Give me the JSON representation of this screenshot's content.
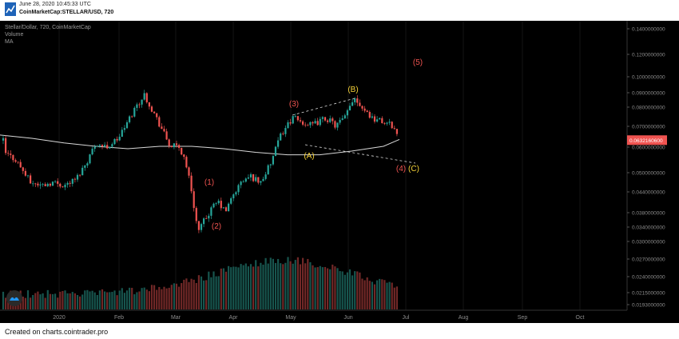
{
  "header": {
    "timestamp": "June 28, 2020 10:45:33 UTC",
    "symbol": "CoinMarketCap:STELLAR/USD, 720"
  },
  "legend": {
    "title": "Stellar/Dollar, 720, CoinMarketCap",
    "volume": "Volume",
    "ma": "MA"
  },
  "footer": {
    "text": "Created on charts.cointrader.pro"
  },
  "chart_data": {
    "type": "candlestick",
    "x_ticks": [
      "2020",
      "Feb",
      "Mar",
      "Apr",
      "May",
      "Jun",
      "Jul",
      "Aug",
      "Sep",
      "Oct"
    ],
    "price_ticks": [
      "0.1400000000",
      "0.1200000000",
      "0.1000000000",
      "0.0900000000",
      "0.0800000000",
      "0.0700000000",
      "0.0600000000",
      "0.0500000000",
      "0.0440000000",
      "0.0380000000",
      "0.0340000000",
      "0.0300000000",
      "0.0270000000",
      "0.0240000000",
      "0.0215000000",
      "0.0193000000"
    ],
    "last_price": "0.0632160600",
    "scale": "log",
    "price_range": [
      0.0193,
      0.14
    ],
    "price_path": [
      [
        "2020",
        0.058
      ],
      [
        null,
        0.055
      ],
      [
        null,
        0.047
      ],
      [
        null,
        0.046
      ],
      [
        null,
        0.047
      ],
      [
        null,
        0.046
      ],
      [
        null,
        0.048
      ],
      [
        null,
        0.054
      ],
      [
        null,
        0.062
      ],
      [
        null,
        0.06
      ],
      [
        "Feb",
        0.064
      ],
      [
        null,
        0.072
      ],
      [
        null,
        0.08
      ],
      [
        null,
        0.087
      ],
      [
        null,
        0.077
      ],
      [
        null,
        0.068
      ],
      [
        null,
        0.061
      ],
      [
        "Mar",
        0.06
      ],
      [
        null,
        0.055
      ],
      [
        null,
        0.044
      ],
      [
        null,
        0.033
      ],
      [
        null,
        0.036
      ],
      [
        null,
        0.039
      ],
      [
        null,
        0.041
      ],
      [
        null,
        0.038
      ],
      [
        null,
        0.043
      ],
      [
        "Apr",
        0.047
      ],
      [
        null,
        0.049
      ],
      [
        null,
        0.047
      ],
      [
        null,
        0.053
      ],
      [
        null,
        0.066
      ],
      [
        "May",
        0.074
      ],
      [
        null,
        0.072
      ],
      [
        null,
        0.07
      ],
      [
        null,
        0.074
      ],
      [
        null,
        0.07
      ],
      [
        null,
        0.074
      ],
      [
        "Jun",
        0.086
      ],
      [
        null,
        0.079
      ],
      [
        null,
        0.074
      ],
      [
        null,
        0.072
      ],
      [
        null,
        0.07
      ],
      [
        null,
        0.063
      ]
    ],
    "ma_path": [
      0.0655,
      0.064,
      0.062,
      0.0605,
      0.0595,
      0.0605,
      0.0605,
      0.0595,
      0.058,
      0.057,
      0.057,
      0.0585,
      0.0605,
      0.0635
    ],
    "wave_labels": [
      {
        "text": "(1)",
        "color": "#ef5350"
      },
      {
        "text": "(2)",
        "color": "#ef5350"
      },
      {
        "text": "(3)",
        "color": "#ef5350"
      },
      {
        "text": "(4)",
        "color": "#ef5350"
      },
      {
        "text": "(5)",
        "color": "#ef5350"
      },
      {
        "text": "(A)",
        "color": "#f5d238"
      },
      {
        "text": "(B)",
        "color": "#f5d238"
      },
      {
        "text": "(C)",
        "color": "#f5d238"
      }
    ],
    "colors": {
      "up": "#26a69a",
      "down": "#ef5350",
      "ma": "#d8d8d8",
      "price_tag": "#ef5350",
      "background": "#000000"
    }
  }
}
